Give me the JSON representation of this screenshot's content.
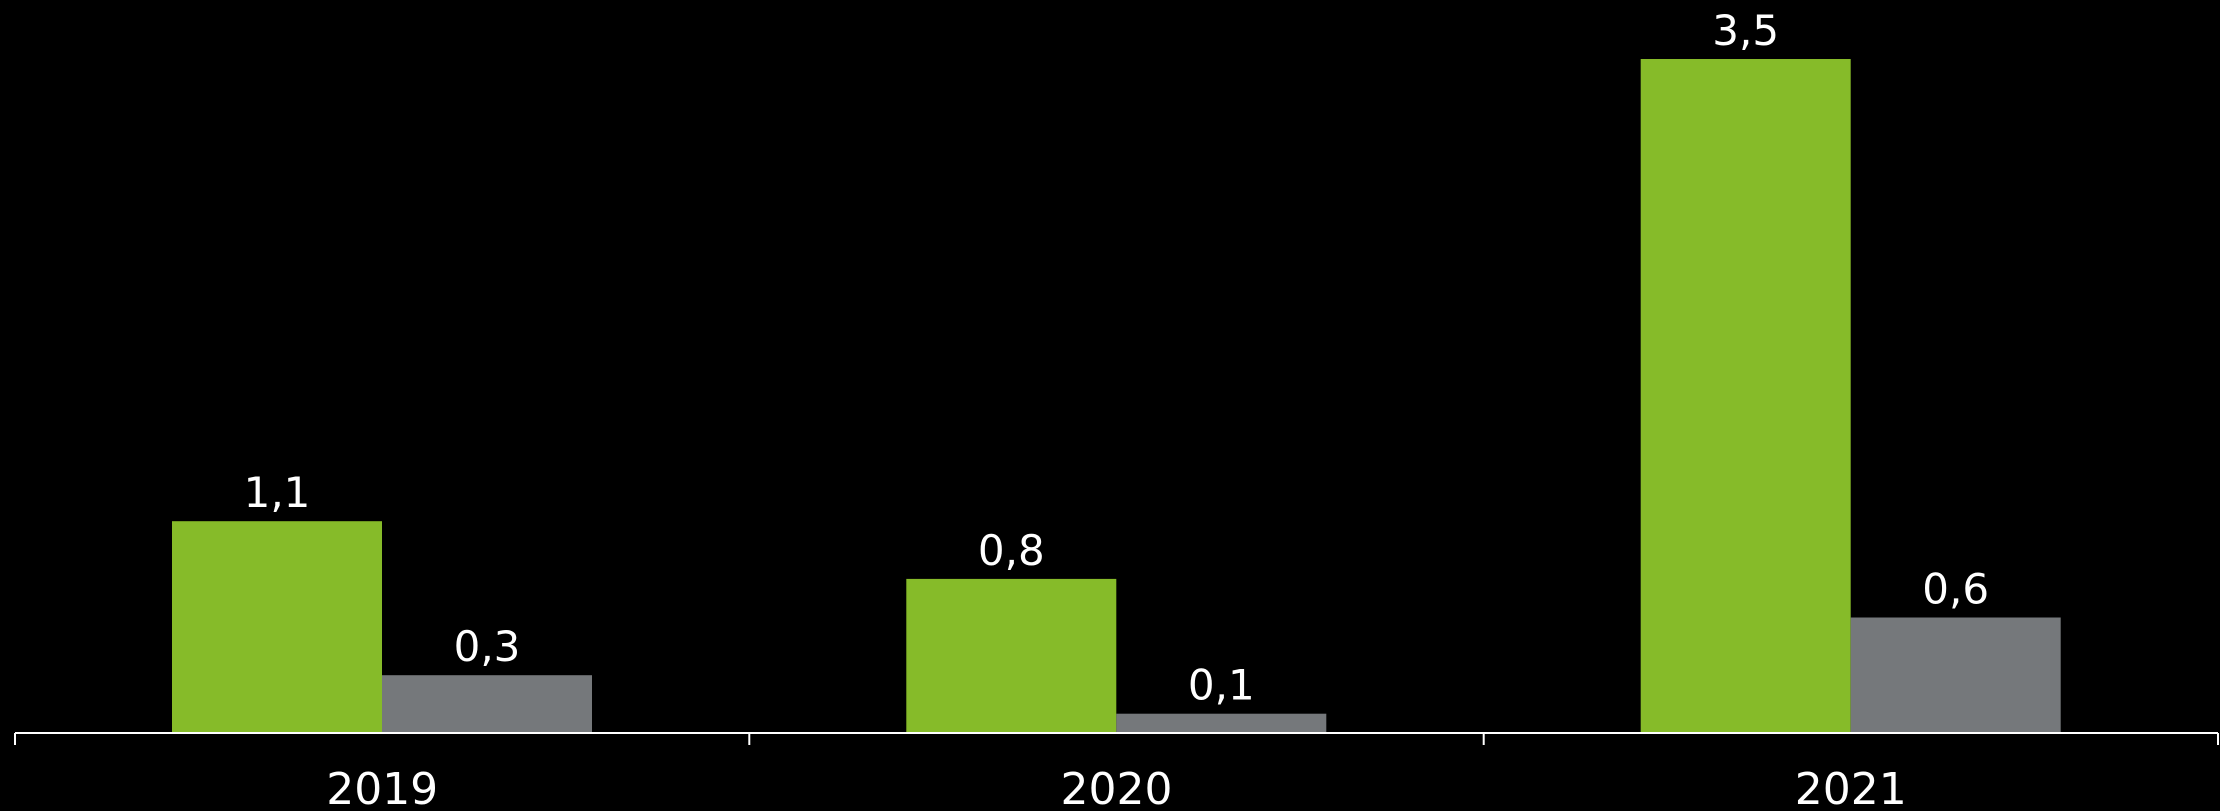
{
  "chart_data": {
    "type": "bar",
    "categories": [
      "2019",
      "2020",
      "2021"
    ],
    "series": [
      {
        "color": "#86bb29",
        "values": [
          1.1,
          0.8,
          3.5
        ],
        "labels": [
          "1,1",
          "0,8",
          "3,5"
        ]
      },
      {
        "color": "#75787b",
        "values": [
          0.3,
          0.1,
          0.6
        ],
        "labels": [
          "0,3",
          "0,1",
          "0,6"
        ]
      }
    ],
    "title": "",
    "xlabel": "",
    "ylabel": "",
    "ylim": [
      0,
      3.5
    ],
    "grid": false,
    "legend": "none",
    "data_labels": "above bars",
    "background": "#000000",
    "axis_color": "#ffffff"
  }
}
